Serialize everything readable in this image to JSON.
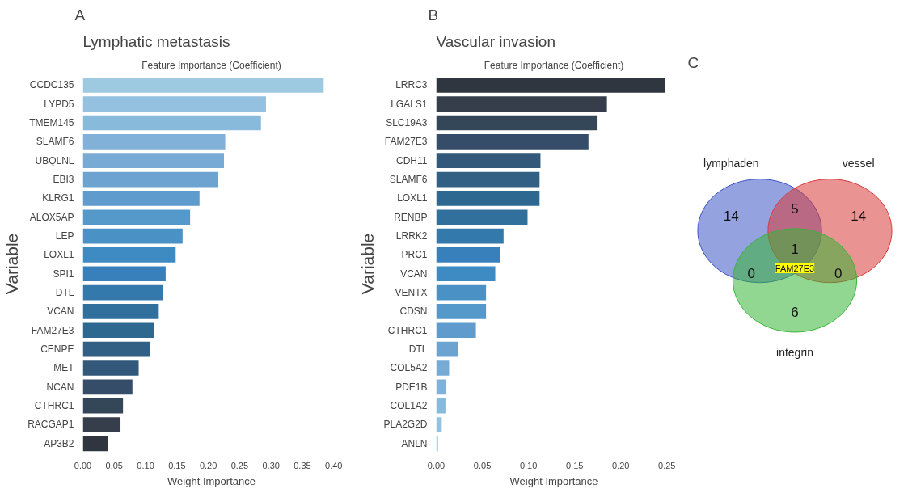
{
  "chart_data": [
    {
      "type": "bar",
      "orientation": "horizontal",
      "title": "Lymphatic metastasis",
      "subtitle": "Feature Importance (Coefficient)",
      "xlabel": "Weight Importance",
      "ylabel": "Variable",
      "annotations": [
        "A"
      ],
      "categories": [
        "CCDC135",
        "LYPD5",
        "TMEM145",
        "SLAMF6",
        "UBQLNL",
        "EBI3",
        "KLRG1",
        "ALOX5AP",
        "LEP",
        "LOXL1",
        "SPI1",
        "DTL",
        "VCAN",
        "FAM27E3",
        "CENPE",
        "MET",
        "NCAN",
        "CTHRC1",
        "RACGAP1",
        "AP3B2"
      ],
      "values": [
        0.384,
        0.292,
        0.284,
        0.227,
        0.225,
        0.216,
        0.186,
        0.171,
        0.159,
        0.148,
        0.132,
        0.127,
        0.121,
        0.113,
        0.107,
        0.089,
        0.079,
        0.064,
        0.06,
        0.04
      ],
      "colors": [
        "#9ecae1",
        "#93c1df",
        "#88badc",
        "#81b0d9",
        "#77aad4",
        "#6ca3d1",
        "#609bcd",
        "#5599ca",
        "#4a91c6",
        "#3e8ac3",
        "#3880bb",
        "#3479ab",
        "#316f9d",
        "#2d6890",
        "#326085",
        "#32587a",
        "#354d69",
        "#344758",
        "#353e4a",
        "#2f363f"
      ],
      "xlim": [
        0,
        0.41
      ],
      "xticks": [
        {
          "value": 0,
          "label": "0.00"
        },
        {
          "value": 0.05,
          "label": "0.05"
        },
        {
          "value": 0.1,
          "label": "0.10"
        },
        {
          "value": 0.15,
          "label": "0.15"
        },
        {
          "value": 0.2,
          "label": "0.20"
        },
        {
          "value": 0.25,
          "label": "0.25"
        },
        {
          "value": 0.3,
          "label": "0.30"
        },
        {
          "value": 0.35,
          "label": "0.35"
        },
        {
          "value": 0.4,
          "label": "0.40"
        }
      ]
    },
    {
      "type": "bar",
      "orientation": "horizontal",
      "title": "Vascular invasion",
      "subtitle": "Feature Importance (Coefficient)",
      "xlabel": "Weight Importance",
      "ylabel": "Variable",
      "annotations": [
        "B"
      ],
      "categories": [
        "LRRC3",
        "LGALS1",
        "SLC19A3",
        "FAM27E3",
        "CDH11",
        "SLAMF6",
        "LOXL1",
        "RENBP",
        "LRRK2",
        "PRC1",
        "VCAN",
        "VENTX",
        "CDSN",
        "CTHRC1",
        "DTL",
        "COL5A2",
        "PDE1B",
        "COL1A2",
        "PLA2G2D",
        "ANLN"
      ],
      "values": [
        0.248,
        0.185,
        0.174,
        0.165,
        0.113,
        0.112,
        0.112,
        0.099,
        0.073,
        0.069,
        0.064,
        0.054,
        0.054,
        0.043,
        0.024,
        0.014,
        0.011,
        0.01,
        0.006,
        0.002
      ],
      "colors": [
        "#2f363f",
        "#353e4a",
        "#344758",
        "#354d69",
        "#32587a",
        "#326085",
        "#2d6890",
        "#316f9d",
        "#3479ab",
        "#3880bb",
        "#3e8ac3",
        "#4a91c6",
        "#5599ca",
        "#609bcd",
        "#6ca3d1",
        "#77aad4",
        "#81b0d9",
        "#88badc",
        "#93c1df",
        "#9ecae1"
      ],
      "xlim": [
        0,
        0.255
      ],
      "xticks": [
        {
          "value": 0,
          "label": "0.00"
        },
        {
          "value": 0.05,
          "label": "0.05"
        },
        {
          "value": 0.1,
          "label": "0.10"
        },
        {
          "value": 0.15,
          "label": "0.15"
        },
        {
          "value": 0.2,
          "label": "0.20"
        },
        {
          "value": 0.25,
          "label": "0.25"
        }
      ]
    },
    {
      "type": "other",
      "annotations": [
        "C",
        "14",
        "5",
        "14",
        "0",
        "1",
        "0",
        "6",
        "FAM27E3"
      ],
      "categories": [
        "lymphaden",
        "vessel",
        "integrin"
      ],
      "colors": [
        "#3d55c4",
        "#d93a3a",
        "#37b437"
      ]
    }
  ]
}
